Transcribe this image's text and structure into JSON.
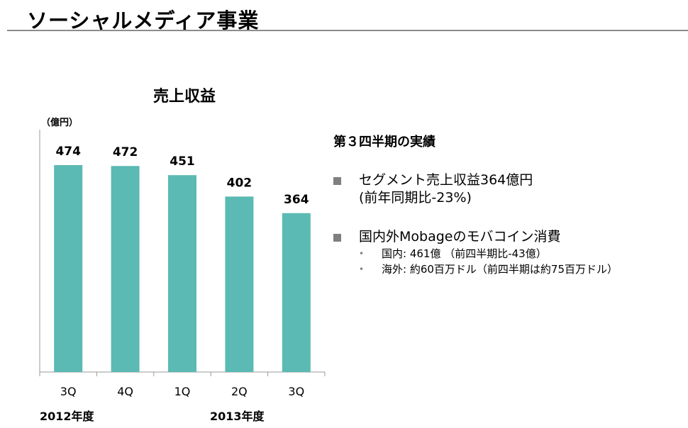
{
  "page": {
    "title": "ソーシャルメディア事業"
  },
  "chart_data": {
    "type": "bar",
    "title": "売上収益",
    "unit": "（億円）",
    "categories": [
      "3Q",
      "4Q",
      "1Q",
      "2Q",
      "3Q"
    ],
    "values": [
      474,
      472,
      451,
      402,
      364
    ],
    "ylim": [
      0,
      500
    ],
    "bar_color": "#5bbab3",
    "year_labels": [
      "2012年度",
      "2013年度"
    ]
  },
  "summary": {
    "heading": "第３四半期の実績",
    "bullet1": {
      "line1": "セグメント売上収益364億円",
      "line2": "(前年同期比-23%)"
    },
    "bullet2": {
      "line1": "国内外Mobageのモバコイン消費",
      "sub1": "国内: 461億 （前四半期比-43億）",
      "sub2": "海外: 約60百万ドル（前四半期は約75百万ドル）"
    }
  }
}
